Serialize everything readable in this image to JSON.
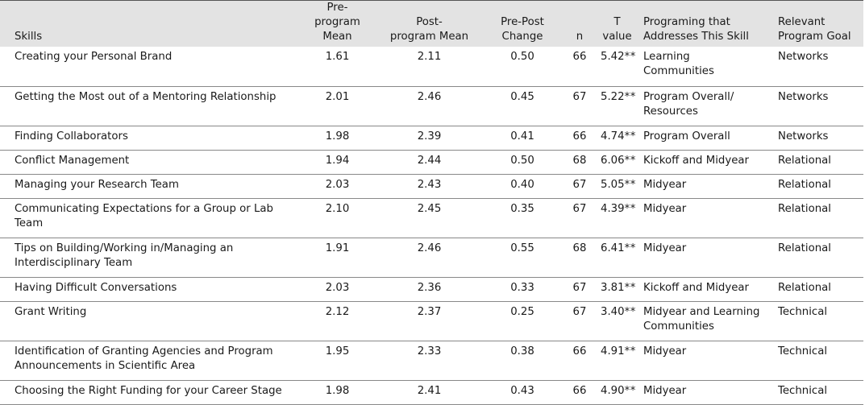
{
  "headers": {
    "skills": "Skills",
    "pre_line1": "Pre-",
    "pre_line2": "program Mean",
    "post_line1": "Post-",
    "post_line2": "program Mean",
    "change_line1": "Pre-Post",
    "change_line2": "Change",
    "n": "n",
    "t_line1": "T",
    "t_line2": "value",
    "prog_line1": "Programing that",
    "prog_line2": "Addresses This Skill",
    "goal_line1": "Relevant",
    "goal_line2": "Program Goal"
  },
  "rows": [
    {
      "skill": "Creating your Personal Brand",
      "pre": "1.61",
      "post": "2.11",
      "change": "0.50",
      "n": "66",
      "t": "5.42",
      "sig": "**",
      "prog1": "Learning",
      "prog2": "Communities",
      "goal": "Networks"
    },
    {
      "skill": "Getting the Most out of a Mentoring Relationship",
      "pre": "2.01",
      "post": "2.46",
      "change": "0.45",
      "n": "67",
      "t": "5.22",
      "sig": "**",
      "prog1": "Program Overall/",
      "prog2": "Resources",
      "goal": "Networks"
    },
    {
      "skill": "Finding Collaborators",
      "pre": "1.98",
      "post": "2.39",
      "change": "0.41",
      "n": "66",
      "t": "4.74",
      "sig": "**",
      "prog1": "Program Overall",
      "prog2": "",
      "goal": "Networks"
    },
    {
      "skill": "Conflict Management",
      "pre": "1.94",
      "post": "2.44",
      "change": "0.50",
      "n": "68",
      "t": "6.06",
      "sig": "**",
      "prog1": "Kickoff and Midyear",
      "prog2": "",
      "goal": "Relational"
    },
    {
      "skill": "Managing your Research Team",
      "pre": "2.03",
      "post": "2.43",
      "change": "0.40",
      "n": "67",
      "t": "5.05",
      "sig": "**",
      "prog1": "Midyear",
      "prog2": "",
      "goal": "Relational"
    },
    {
      "skill": "Communicating Expectations for a Group or Lab Team",
      "pre": "2.10",
      "post": "2.45",
      "change": "0.35",
      "n": "67",
      "t": "4.39",
      "sig": "**",
      "prog1": "Midyear",
      "prog2": "",
      "goal": "Relational"
    },
    {
      "skill": "Tips on Building/Working in/Managing an Interdisciplinary Team",
      "pre": "1.91",
      "post": "2.46",
      "change": "0.55",
      "n": "68",
      "t": "6.41",
      "sig": "**",
      "prog1": "Midyear",
      "prog2": "",
      "goal": "Relational"
    },
    {
      "skill": "Having Difficult Conversations",
      "pre": "2.03",
      "post": "2.36",
      "change": "0.33",
      "n": "67",
      "t": "3.81",
      "sig": "**",
      "prog1": "Kickoff and Midyear",
      "prog2": "",
      "goal": "Relational"
    },
    {
      "skill": "Grant Writing",
      "pre": "2.12",
      "post": "2.37",
      "change": "0.25",
      "n": "67",
      "t": "3.40",
      "sig": "**",
      "prog1": "Midyear and Learning",
      "prog2": "Communities",
      "goal": "Technical"
    },
    {
      "skill": "Identification of Granting Agencies and Program Announcements in Scientific Area",
      "pre": "1.95",
      "post": "2.33",
      "change": "0.38",
      "n": "66",
      "t": "4.91",
      "sig": "**",
      "prog1": "Midyear",
      "prog2": "",
      "goal": "Technical"
    },
    {
      "skill": "Choosing the Right Funding for your Career Stage",
      "pre": "1.98",
      "post": "2.41",
      "change": "0.43",
      "n": "66",
      "t": "4.90",
      "sig": "**",
      "prog1": "Midyear",
      "prog2": "",
      "goal": "Technical"
    }
  ]
}
